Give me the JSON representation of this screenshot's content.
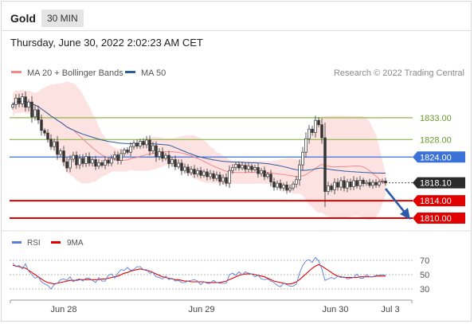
{
  "header": {
    "symbol": "Gold",
    "timeframe": "30 MIN",
    "timestamp": "Thursday, June 30, 2022 2:02:23 AM CET"
  },
  "legend": {
    "items": [
      {
        "label": "MA 20 + Bollinger Bands",
        "color": "#f08a8a"
      },
      {
        "label": "MA 50",
        "color": "#2f5a9e"
      }
    ],
    "credit": "Research © 2022 Trading Central"
  },
  "rsi_legend": {
    "items": [
      {
        "label": "RSI",
        "color": "#5b7fd6"
      },
      {
        "label": "9MA",
        "color": "#e00000"
      }
    ]
  },
  "chart_data": [
    {
      "type": "candlestick",
      "instrument": "Gold",
      "timeframe": "30 MIN",
      "x_labels": [
        "Jun 28",
        "Jun 29",
        "Jun 30",
        "Jul 3"
      ],
      "ylim": [
        1808,
        1839
      ],
      "current_price": {
        "value": 1818.1,
        "label": "1818.10"
      },
      "levels": [
        {
          "value": 1833.0,
          "label": "1833.00",
          "color": "#8db64a",
          "kind": "resistance"
        },
        {
          "value": 1828.0,
          "label": "1828.00",
          "color": "#8db64a",
          "kind": "resistance"
        },
        {
          "value": 1824.0,
          "label": "1824.00",
          "color": "#3a72d8",
          "kind": "pivot"
        },
        {
          "value": 1814.0,
          "label": "1814.00",
          "color": "#e00000",
          "kind": "support"
        },
        {
          "value": 1810.0,
          "label": "1810.00",
          "color": "#e00000",
          "kind": "support"
        }
      ],
      "series": [
        {
          "name": "MA 20 + Bollinger Bands",
          "color": "#f08a8a"
        },
        {
          "name": "MA 50",
          "color": "#2f5a9e"
        }
      ],
      "closes": [
        1836.0,
        1837.5,
        1836.2,
        1837.8,
        1835.4,
        1836.6,
        1833.2,
        1834.8,
        1832.5,
        1830.1,
        1829.5,
        1828.1,
        1826.4,
        1827.5,
        1824.6,
        1825.4,
        1822.9,
        1821.5,
        1823.5,
        1824.4,
        1822.2,
        1823.7,
        1822.5,
        1824.1,
        1822.6,
        1823.4,
        1821.9,
        1822.7,
        1822.1,
        1823.3,
        1822.6,
        1823.7,
        1824.5,
        1823.2,
        1824.8,
        1825.6,
        1825.1,
        1826.4,
        1827.2,
        1826.5,
        1827.6,
        1826.8,
        1827.9,
        1825.4,
        1826.6,
        1824.1,
        1825.2,
        1823.7,
        1824.4,
        1822.5,
        1823.4,
        1821.8,
        1822.6,
        1820.9,
        1821.7,
        1820.4,
        1821.2,
        1820.1,
        1820.9,
        1819.8,
        1820.6,
        1819.5,
        1820.2,
        1819.1,
        1819.9,
        1818.4,
        1819.3,
        1818.0,
        1820.9,
        1821.6,
        1822.3,
        1821.5,
        1822.1,
        1821.2,
        1821.9,
        1821.1,
        1821.6,
        1820.2,
        1820.9,
        1819.5,
        1820.1,
        1818.3,
        1817.1,
        1818.0,
        1816.9,
        1817.6,
        1816.4,
        1816.9,
        1817.8,
        1818.8,
        1822.2,
        1825.1,
        1828.2,
        1830.4,
        1829.6,
        1832.4,
        1831.4,
        1828.4,
        1816.1,
        1817.4,
        1816.5,
        1818.2,
        1817.1,
        1818.6,
        1816.9,
        1818.3,
        1817.2,
        1818.6,
        1817.4,
        1818.7,
        1817.9,
        1818.2,
        1817.5,
        1818.2,
        1817.6,
        1818.3,
        1818.5,
        1818.1
      ],
      "rsi": {
        "levels": [
          70,
          50,
          30
        ],
        "ylim": [
          20,
          80
        ],
        "values": [
          66,
          61,
          63,
          58,
          65,
          55,
          50,
          45,
          47,
          40,
          37,
          35,
          30,
          36,
          38,
          43,
          44,
          42,
          47,
          40,
          43,
          44,
          41,
          45,
          45,
          42,
          39,
          46,
          41,
          41,
          49,
          51,
          45,
          52,
          57,
          56,
          60,
          56,
          57,
          61,
          61,
          57,
          57,
          52,
          53,
          47,
          46,
          44,
          48,
          43,
          45,
          41,
          42,
          39,
          39,
          41,
          42,
          43,
          41,
          36,
          40,
          38,
          38,
          42,
          39,
          38,
          38,
          38,
          50,
          52,
          49,
          54,
          50,
          54,
          52,
          51,
          47,
          49,
          44,
          43,
          44,
          41,
          39,
          35,
          33,
          38,
          36,
          34,
          34,
          37,
          52,
          63,
          69,
          71,
          67,
          74,
          69,
          58,
          42,
          44,
          46,
          44,
          48,
          46,
          47,
          44,
          45,
          46,
          51,
          45,
          45,
          50,
          47,
          47,
          49,
          49,
          50,
          49
        ],
        "ma9": [
          63,
          62,
          61,
          60,
          59,
          56,
          53,
          50,
          47,
          44,
          41,
          39,
          38,
          37,
          38,
          39,
          40,
          41,
          42,
          42,
          42,
          43,
          43,
          43,
          43,
          43,
          43,
          43,
          44,
          44,
          45,
          46,
          47,
          48,
          50,
          52,
          53,
          55,
          56,
          57,
          58,
          57,
          56,
          55,
          53,
          51,
          49,
          47,
          46,
          45,
          44,
          43,
          43,
          42,
          41,
          41,
          40,
          40,
          40,
          40,
          40,
          39,
          39,
          39,
          39,
          39,
          40,
          41,
          43,
          45,
          47,
          49,
          50,
          51,
          51,
          51,
          50,
          49,
          48,
          47,
          45,
          43,
          41,
          40,
          39,
          38,
          37,
          37,
          38,
          40,
          43,
          47,
          51,
          55,
          59,
          62,
          64,
          62,
          59,
          56,
          53,
          50,
          48,
          47,
          46,
          46,
          46,
          46,
          46,
          47,
          47,
          47,
          47,
          47,
          48,
          48,
          48,
          48
        ]
      }
    }
  ]
}
